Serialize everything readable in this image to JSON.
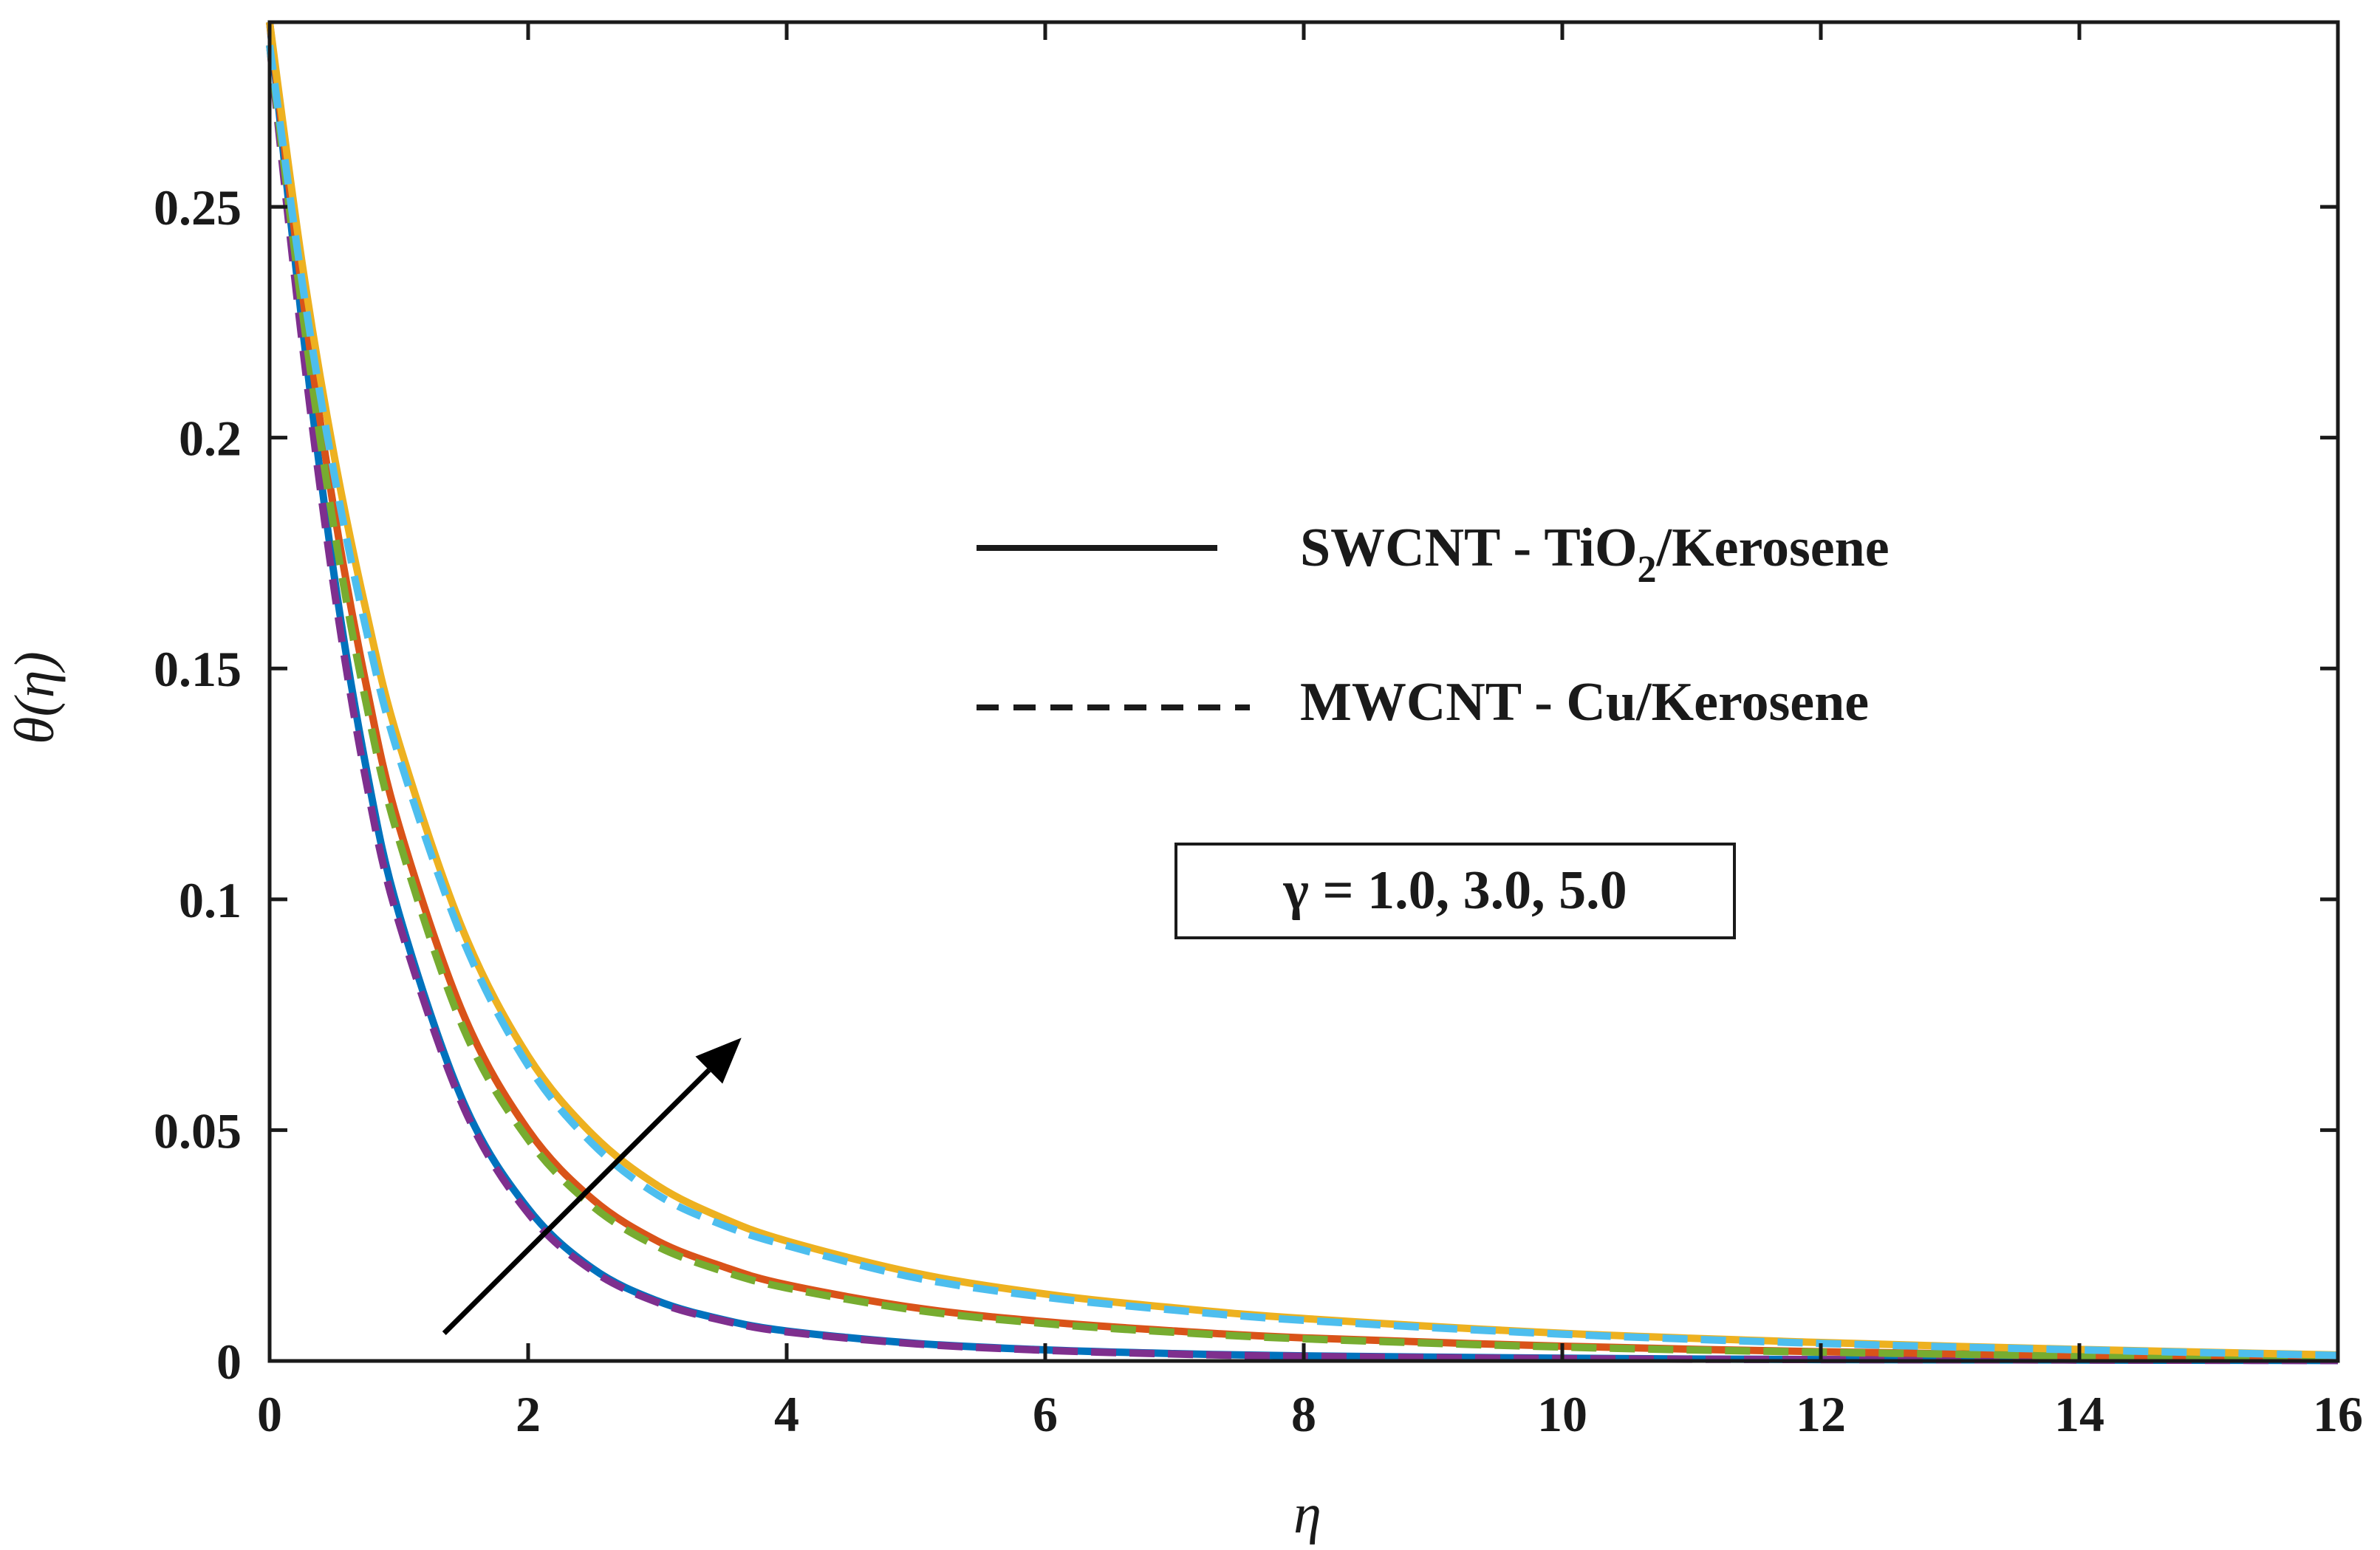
{
  "chart_data": {
    "type": "line",
    "title": "",
    "xlabel": "η",
    "ylabel": "θ(η)",
    "xlim": [
      0,
      16
    ],
    "ylim": [
      0,
      0.29
    ],
    "x_ticks": [
      0,
      2,
      4,
      6,
      8,
      10,
      12,
      14,
      16
    ],
    "x_tick_labels": [
      "0",
      "2",
      "4",
      "6",
      "8",
      "10",
      "12",
      "14",
      "16"
    ],
    "y_ticks": [
      0,
      0.05,
      0.1,
      0.15,
      0.2,
      0.25
    ],
    "y_tick_labels": [
      "0",
      "0.05",
      "0.1",
      "0.15",
      "0.2",
      "0.25"
    ],
    "grid": false,
    "x": [
      0,
      0.25,
      0.5,
      0.75,
      1,
      1.5,
      2,
      2.5,
      3,
      3.5,
      4,
      5,
      6,
      7,
      8,
      10,
      12,
      14,
      16
    ],
    "series": [
      {
        "name": "SWCNT - TiO2/Kerosene, γ = 1.0",
        "style": "solid",
        "color": "#0072BD",
        "values": [
          0.29,
          0.225,
          0.17,
          0.128,
          0.097,
          0.056,
          0.033,
          0.02,
          0.013,
          0.009,
          0.0065,
          0.0038,
          0.0024,
          0.0016,
          0.0011,
          0.0006,
          0.0003,
          0.0002,
          0.0001
        ]
      },
      {
        "name": "MWCNT - Cu/Kerosene, γ = 1.0",
        "style": "dashed",
        "color": "#7E2F8E",
        "values": [
          0.285,
          0.221,
          0.167,
          0.125,
          0.095,
          0.055,
          0.032,
          0.0195,
          0.0127,
          0.0088,
          0.0063,
          0.0037,
          0.0023,
          0.0015,
          0.001,
          0.0005,
          0.0003,
          0.0002,
          0.0001
        ]
      },
      {
        "name": "SWCNT - TiO2/Kerosene, γ = 3.0",
        "style": "solid",
        "color": "#D95319",
        "values": [
          0.29,
          0.232,
          0.184,
          0.146,
          0.116,
          0.075,
          0.05,
          0.035,
          0.026,
          0.0205,
          0.0165,
          0.0115,
          0.0085,
          0.0065,
          0.005,
          0.0032,
          0.002,
          0.0012,
          0.0006
        ]
      },
      {
        "name": "MWCNT - Cu/Kerosene, γ = 3.0",
        "style": "dashed",
        "color": "#77AC30",
        "values": [
          0.285,
          0.228,
          0.18,
          0.142,
          0.113,
          0.072,
          0.048,
          0.0335,
          0.0248,
          0.0195,
          0.0158,
          0.011,
          0.0081,
          0.0062,
          0.0048,
          0.003,
          0.0019,
          0.0011,
          0.0005
        ]
      },
      {
        "name": "SWCNT - TiO2/Kerosene, γ = 5.0",
        "style": "solid",
        "color": "#EDB120",
        "values": [
          0.29,
          0.238,
          0.196,
          0.162,
          0.134,
          0.093,
          0.066,
          0.049,
          0.038,
          0.031,
          0.026,
          0.019,
          0.0145,
          0.0115,
          0.0092,
          0.006,
          0.004,
          0.0025,
          0.0013
        ]
      },
      {
        "name": "MWCNT - Cu/Kerosene, γ = 5.0",
        "style": "dashed",
        "color": "#4DBEEE",
        "values": [
          0.285,
          0.234,
          0.192,
          0.158,
          0.131,
          0.091,
          0.064,
          0.047,
          0.036,
          0.0295,
          0.025,
          0.018,
          0.0138,
          0.011,
          0.0088,
          0.0058,
          0.0038,
          0.0024,
          0.0012
        ]
      }
    ],
    "legend": [
      {
        "style": "solid",
        "label_main": "SWCNT - TiO",
        "label_sub": "2",
        "label_tail": "/Kerosene"
      },
      {
        "style": "dashed",
        "label_main": "MWCNT - Cu/Kerosene",
        "label_sub": "",
        "label_tail": ""
      }
    ],
    "legend_position": "top-right",
    "annotation_box": "γ = 1.0, 3.0, 5.0",
    "arrow": {
      "from": [
        1.35,
        0.006
      ],
      "to": [
        3.65,
        0.07
      ],
      "meaning": "increasing γ"
    }
  },
  "colors": {
    "axis": "#1a1a1a",
    "background": "#ffffff"
  }
}
